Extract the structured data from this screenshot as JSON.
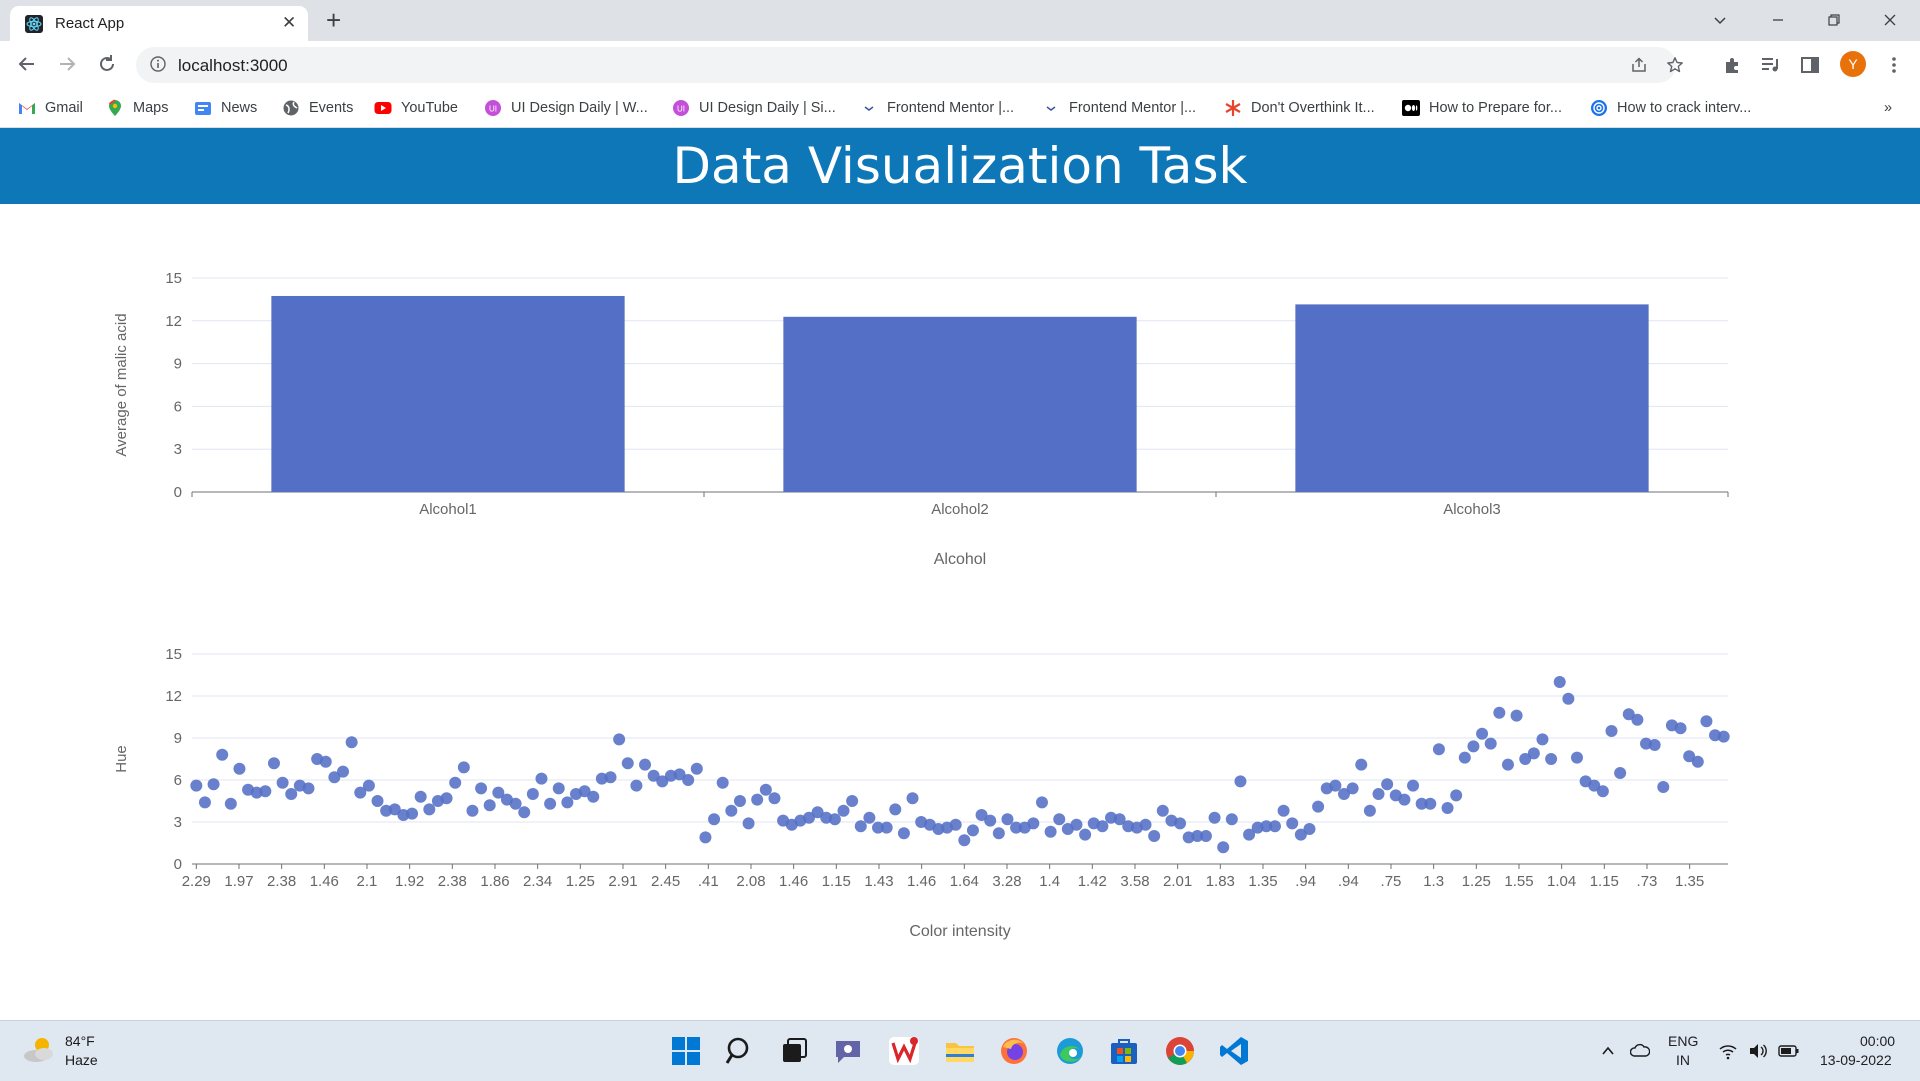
{
  "browser": {
    "tab_title": "React App",
    "close_glyph": "✕",
    "new_tab_glyph": "+",
    "url": "localhost:3000",
    "profile_initial": "Y",
    "bookmarks_overflow": "»",
    "bookmarks": [
      {
        "label": "Gmail",
        "icon": "gmail-icon",
        "color": "#ea4335"
      },
      {
        "label": "Maps",
        "icon": "maps-icon",
        "color": "#34a853"
      },
      {
        "label": "News",
        "icon": "news-icon",
        "color": "#4285f4"
      },
      {
        "label": "Events",
        "icon": "globe-icon",
        "color": "#5f6368"
      },
      {
        "label": "YouTube",
        "icon": "youtube-icon",
        "color": "#ff0000"
      },
      {
        "label": "UI Design Daily | W...",
        "icon": "ui-design-daily-icon",
        "color": "#c44fd8"
      },
      {
        "label": "UI Design Daily | Si...",
        "icon": "ui-design-daily-icon",
        "color": "#c44fd8"
      },
      {
        "label": "Frontend Mentor |...",
        "icon": "frontend-mentor-icon",
        "color": "#3e54a3"
      },
      {
        "label": "Frontend Mentor |...",
        "icon": "frontend-mentor-icon",
        "color": "#3e54a3"
      },
      {
        "label": "Don't Overthink It...",
        "icon": "asterisk-icon",
        "color": "#e8452c"
      },
      {
        "label": "How to Prepare for...",
        "icon": "medium-icon",
        "color": "#000000"
      },
      {
        "label": "How to crack interv...",
        "icon": "at-icon",
        "color": "#1a73e8"
      }
    ]
  },
  "page": {
    "title": "Data Visualization Task",
    "header_color": "#0d77b8"
  },
  "chart_data": [
    {
      "type": "bar",
      "categories": [
        "Alcohol1",
        "Alcohol2",
        "Alcohol3"
      ],
      "values": [
        13.74,
        12.28,
        13.15
      ],
      "xlabel": "Alcohol",
      "ylabel": "Average of malic acid",
      "ylim": [
        0,
        15
      ],
      "yticks": [
        0,
        3,
        6,
        9,
        12,
        15
      ],
      "color": "#5470c6",
      "grid": true
    },
    {
      "type": "scatter",
      "xlabel": "Color intensity",
      "ylabel": "Hue",
      "ylim": [
        0,
        15
      ],
      "yticks": [
        0,
        3,
        6,
        9,
        12,
        15
      ],
      "xticks": [
        "2.29",
        "1.97",
        "2.38",
        "1.46",
        "2.1",
        "1.92",
        "2.38",
        "1.86",
        "2.34",
        "1.25",
        "2.91",
        "2.45",
        ".41",
        "2.08",
        "1.46",
        "1.15",
        "1.43",
        "1.46",
        "1.64",
        "3.28",
        "1.4",
        "1.42",
        "3.58",
        "2.01",
        "1.83",
        "1.35",
        ".94",
        ".94",
        ".75",
        "1.3",
        "1.25",
        "1.55",
        "1.04",
        "1.15",
        ".73",
        "1.35"
      ],
      "color": "#5470c6",
      "grid": true,
      "y": [
        5.6,
        4.4,
        5.7,
        7.8,
        4.3,
        6.8,
        5.3,
        5.1,
        5.2,
        7.2,
        5.8,
        5.0,
        5.6,
        5.4,
        7.5,
        7.3,
        6.2,
        6.6,
        8.7,
        5.1,
        5.6,
        4.5,
        3.8,
        3.9,
        3.5,
        3.6,
        4.8,
        3.9,
        4.5,
        4.7,
        5.8,
        6.9,
        3.8,
        5.4,
        4.2,
        5.1,
        4.6,
        4.3,
        3.7,
        5.0,
        6.1,
        4.3,
        5.4,
        4.4,
        5.0,
        5.2,
        4.8,
        6.1,
        6.2,
        8.9,
        7.2,
        5.6,
        7.1,
        6.3,
        5.9,
        6.3,
        6.4,
        6.0,
        6.8,
        1.9,
        3.2,
        5.8,
        3.8,
        4.5,
        2.9,
        4.6,
        5.3,
        4.7,
        3.1,
        2.8,
        3.1,
        3.3,
        3.7,
        3.3,
        3.2,
        3.8,
        4.5,
        2.7,
        3.3,
        2.6,
        2.6,
        3.9,
        2.2,
        4.7,
        3.0,
        2.8,
        2.5,
        2.6,
        2.8,
        1.7,
        2.4,
        3.5,
        3.1,
        2.2,
        3.2,
        2.6,
        2.6,
        2.9,
        4.4,
        2.3,
        3.2,
        2.5,
        2.8,
        2.1,
        2.9,
        2.7,
        3.3,
        3.2,
        2.7,
        2.6,
        2.8,
        2.0,
        3.8,
        3.1,
        2.9,
        1.9,
        2.0,
        2.0,
        3.3,
        1.2,
        3.2,
        5.9,
        2.1,
        2.6,
        2.7,
        2.7,
        3.8,
        2.9,
        2.1,
        2.5,
        4.1,
        5.4,
        5.6,
        5.0,
        5.4,
        7.1,
        3.8,
        5.0,
        5.7,
        4.9,
        4.6,
        5.6,
        4.3,
        4.3,
        8.2,
        4.0,
        4.9,
        7.6,
        8.4,
        9.3,
        8.6,
        10.8,
        7.1,
        10.6,
        7.5,
        7.9,
        8.9,
        7.5,
        13.0,
        11.8,
        7.6,
        5.9,
        5.6,
        5.2,
        9.5,
        6.5,
        10.7,
        10.3,
        8.6,
        8.5,
        5.5,
        9.9,
        9.7,
        7.7,
        7.3,
        10.2,
        9.2,
        9.1
      ]
    }
  ],
  "taskbar": {
    "weather_temp": "84°F",
    "weather_desc": "Haze",
    "lang_line1": "ENG",
    "lang_line2": "IN",
    "time": "00:00",
    "date": "13-09-2022"
  }
}
